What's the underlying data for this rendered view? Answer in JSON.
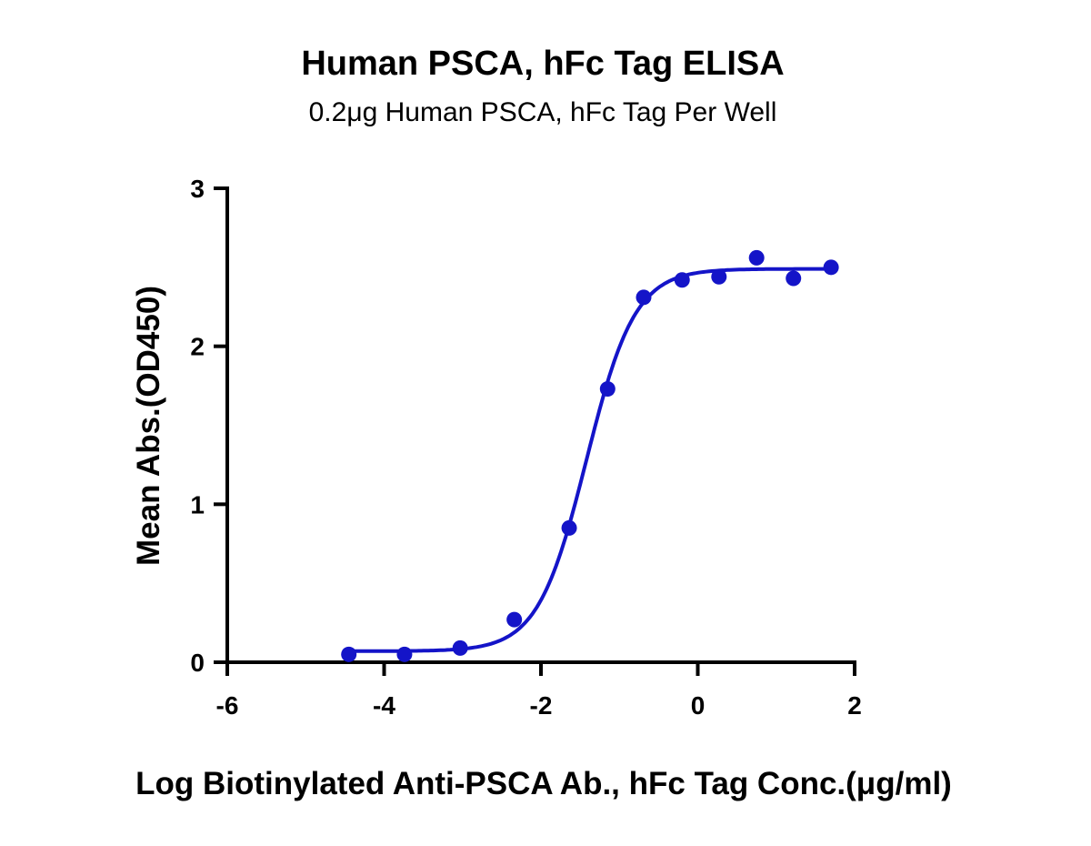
{
  "chart_data": {
    "type": "scatter",
    "title": "Human PSCA, hFc Tag ELISA",
    "subtitle": "0.2μg Human PSCA, hFc Tag Per Well",
    "xlabel": "Log Biotinylated Anti-PSCA Ab., hFc Tag Conc.(μg/ml)",
    "ylabel": "Mean Abs.(OD450)",
    "xlim": [
      -6,
      2
    ],
    "ylim": [
      0,
      3
    ],
    "xticks": [
      "-6",
      "-4",
      "-2",
      "0",
      "2"
    ],
    "yticks": [
      "0",
      "1",
      "2",
      "3"
    ],
    "grid": false,
    "color": "#1414c8",
    "points": {
      "x": [
        -4.45,
        -3.74,
        -3.03,
        -2.34,
        -1.64,
        -1.15,
        -0.69,
        -0.2,
        0.27,
        0.75,
        1.22,
        1.7
      ],
      "y": [
        0.05,
        0.05,
        0.09,
        0.27,
        0.85,
        1.73,
        2.31,
        2.42,
        2.44,
        2.56,
        2.43,
        2.5
      ]
    },
    "fit_curve": {
      "model": "4PL",
      "bottom": 0.07,
      "top": 2.49,
      "logEC50": -1.42,
      "hill_slope": 1.4,
      "x_range": [
        -4.45,
        1.7
      ]
    }
  }
}
